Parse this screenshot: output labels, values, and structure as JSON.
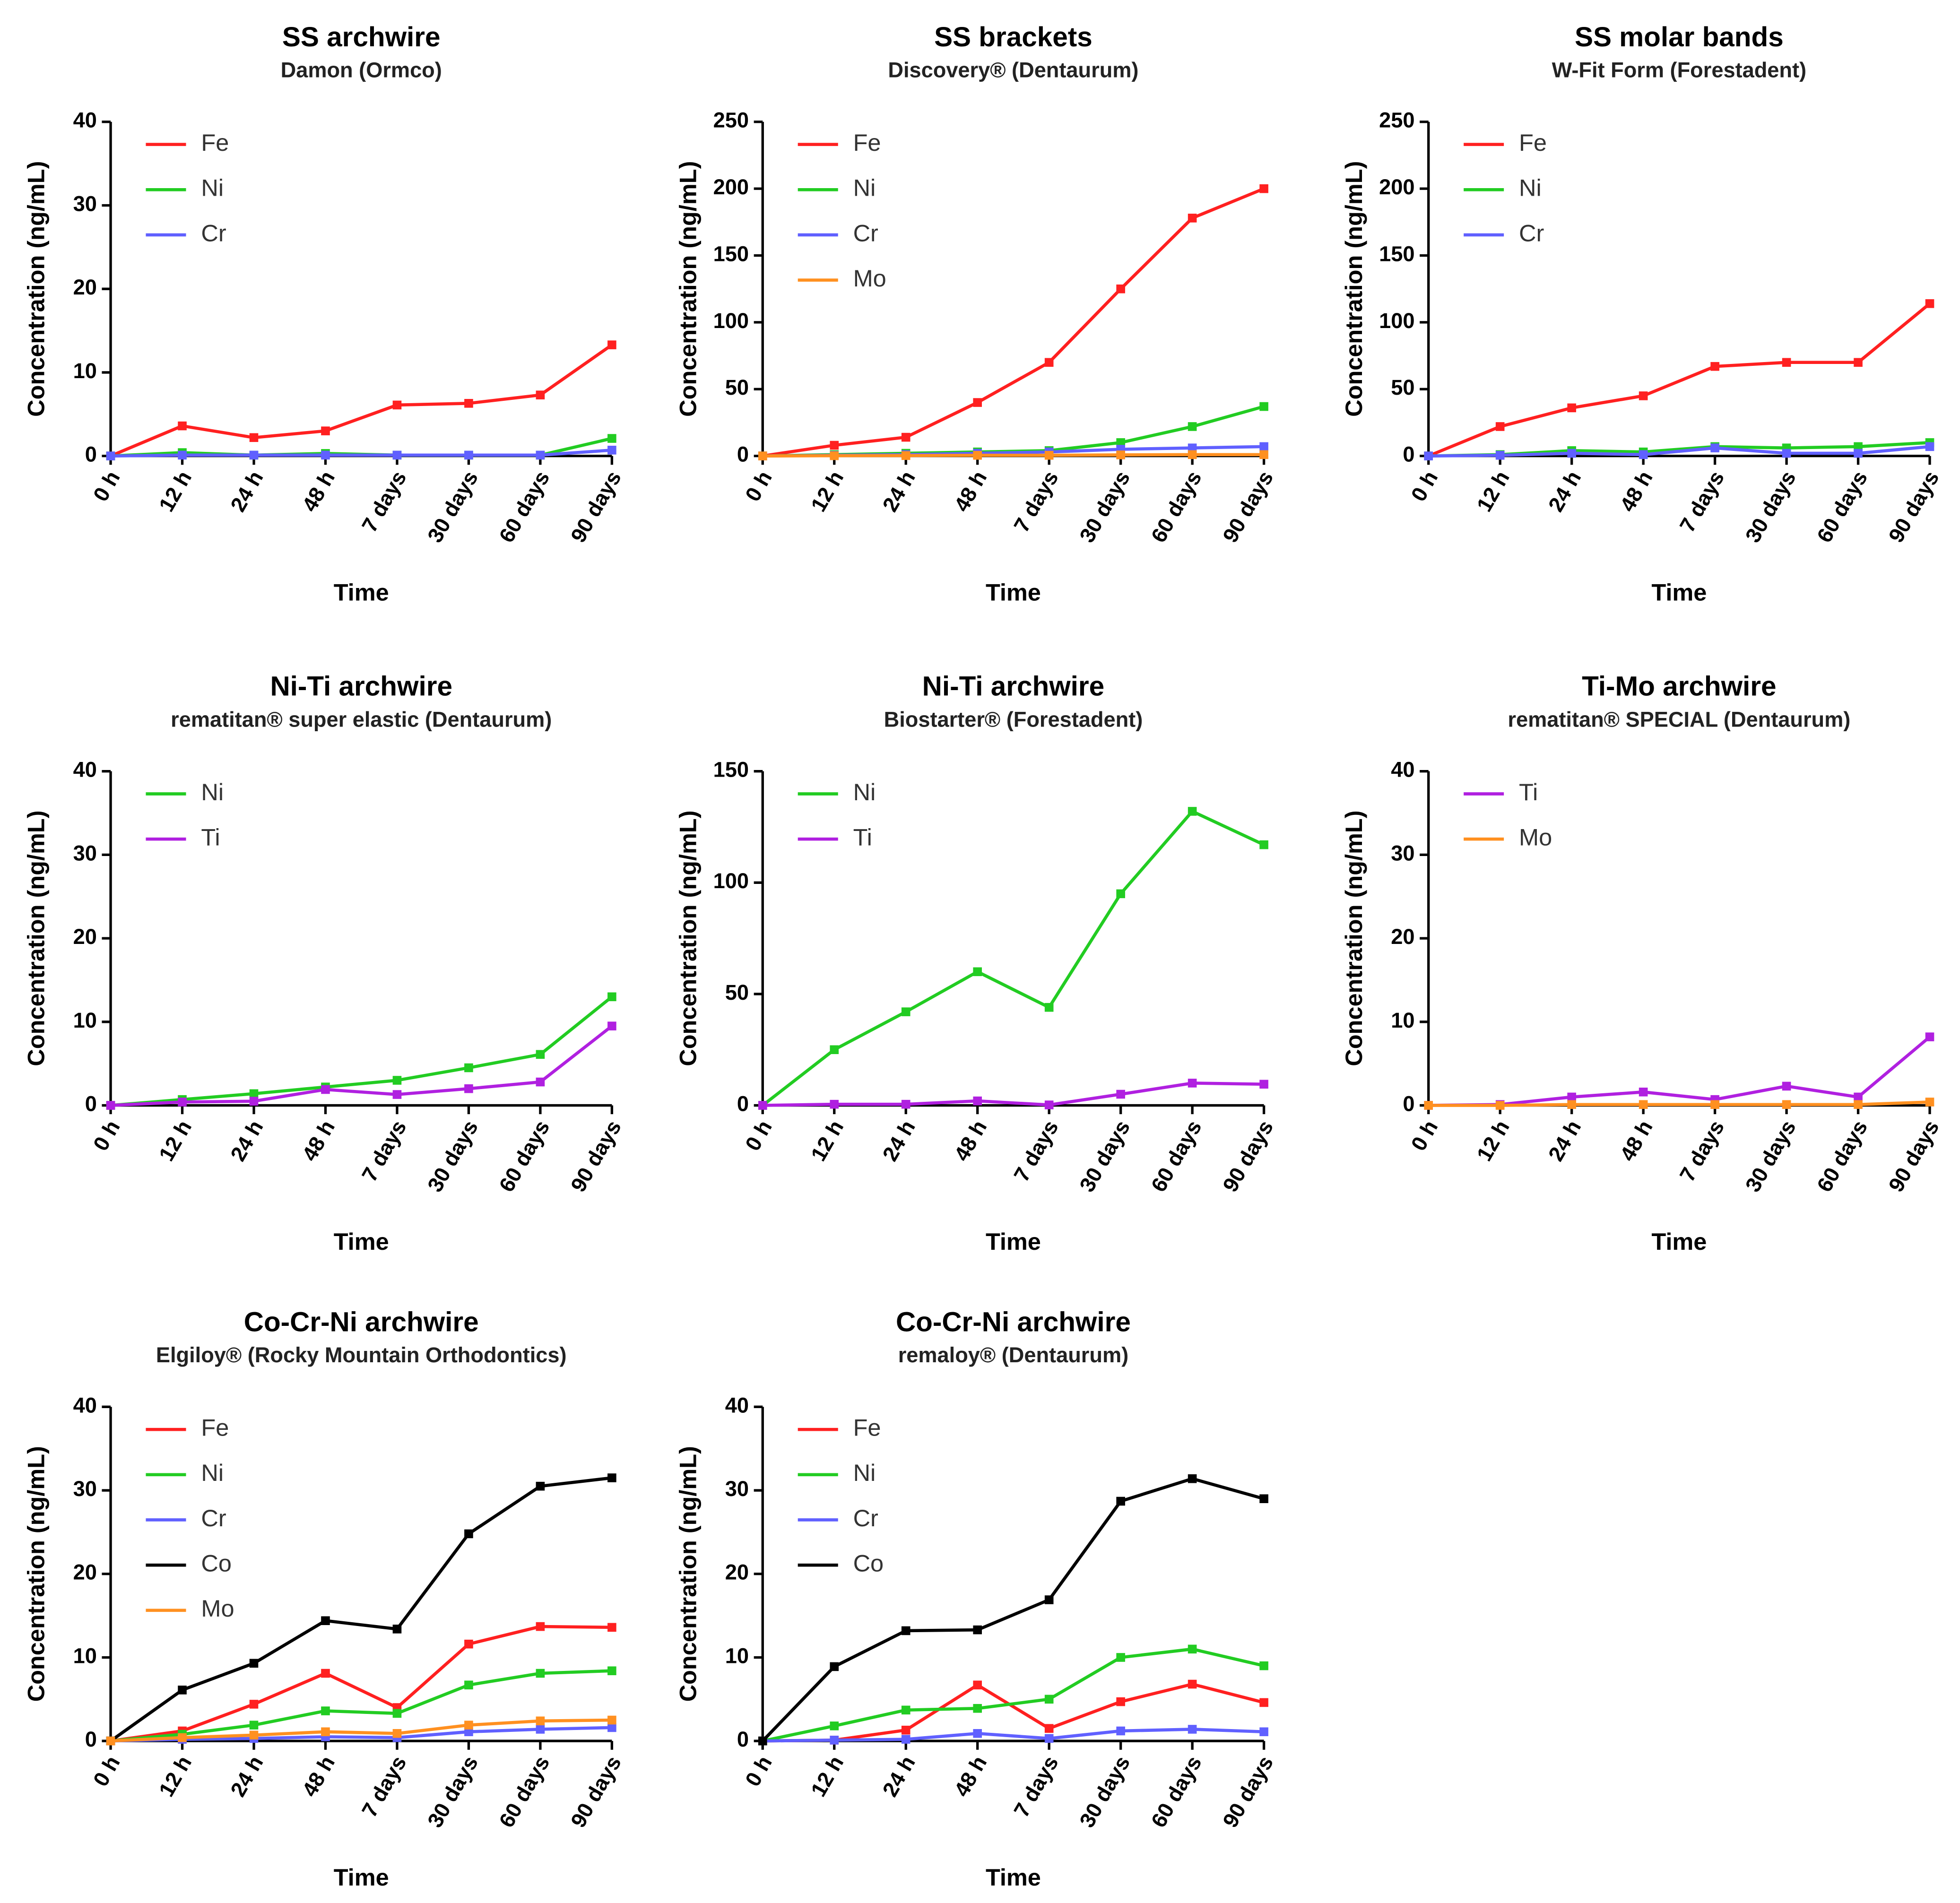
{
  "chart_data": [
    {
      "type": "line",
      "title": "SS archwire",
      "subtitle": "Damon (Ormco)",
      "x_label": "Time",
      "y_label": "Concentration (ng/mL)",
      "categories": [
        "0 h",
        "12 h",
        "24 h",
        "48 h",
        "7 days",
        "30 days",
        "60 days",
        "90 days"
      ],
      "ylim": [
        0,
        40
      ],
      "yticks": [
        0,
        10,
        20,
        30,
        40
      ],
      "legend": "top-left",
      "series": [
        {
          "name": "Fe",
          "color": "#ff2020",
          "values": [
            0,
            3.6,
            2.2,
            3,
            6.1,
            6.3,
            7.3,
            13.3
          ]
        },
        {
          "name": "Ni",
          "color": "#22cc22",
          "values": [
            0,
            0.4,
            0.1,
            0.3,
            0.1,
            0.1,
            0.1,
            2.1
          ]
        },
        {
          "name": "Cr",
          "color": "#6060ff",
          "values": [
            0,
            0.1,
            0.1,
            0.1,
            0.1,
            0.1,
            0.1,
            0.7
          ]
        }
      ]
    },
    {
      "type": "line",
      "title": "SS brackets",
      "subtitle": "Discovery® (Dentaurum)",
      "x_label": "Time",
      "y_label": "Concentration (ng/mL)",
      "categories": [
        "0 h",
        "12 h",
        "24 h",
        "48 h",
        "7 days",
        "30 days",
        "60 days",
        "90 days"
      ],
      "ylim": [
        0,
        250
      ],
      "yticks": [
        0,
        50,
        100,
        150,
        200,
        250
      ],
      "legend": "top-left",
      "series": [
        {
          "name": "Fe",
          "color": "#ff2020",
          "values": [
            0,
            8,
            14,
            40,
            70,
            125,
            178,
            200
          ]
        },
        {
          "name": "Ni",
          "color": "#22cc22",
          "values": [
            0,
            1,
            2,
            3,
            4,
            10,
            22,
            37
          ]
        },
        {
          "name": "Cr",
          "color": "#6060ff",
          "values": [
            0,
            0.5,
            1,
            2,
            3,
            5,
            6,
            7
          ]
        },
        {
          "name": "Mo",
          "color": "#ff9020",
          "values": [
            0,
            0.2,
            0.3,
            0.5,
            0.5,
            0.8,
            1,
            1
          ]
        }
      ]
    },
    {
      "type": "line",
      "title": "SS molar bands",
      "subtitle": "W-Fit Form (Forestadent)",
      "x_label": "Time",
      "y_label": "Concentration (ng/mL)",
      "categories": [
        "0 h",
        "12 h",
        "24 h",
        "48 h",
        "7 days",
        "30 days",
        "60 days",
        "90 days"
      ],
      "ylim": [
        0,
        250
      ],
      "yticks": [
        0,
        50,
        100,
        150,
        200,
        250
      ],
      "legend": "top-left",
      "series": [
        {
          "name": "Fe",
          "color": "#ff2020",
          "values": [
            0,
            22,
            36,
            45,
            67,
            70,
            70,
            114
          ]
        },
        {
          "name": "Ni",
          "color": "#22cc22",
          "values": [
            0,
            1,
            4,
            3,
            7,
            6,
            7,
            10
          ]
        },
        {
          "name": "Cr",
          "color": "#6060ff",
          "values": [
            0,
            0.5,
            2,
            1,
            6,
            2,
            2,
            7
          ]
        }
      ]
    },
    {
      "type": "line",
      "title": "Ni-Ti archwire",
      "subtitle": "rematitan® super elastic (Dentaurum)",
      "x_label": "Time",
      "y_label": "Concentration (ng/mL)",
      "categories": [
        "0 h",
        "12 h",
        "24 h",
        "48 h",
        "7 days",
        "30 days",
        "60 days",
        "90 days"
      ],
      "ylim": [
        0,
        40
      ],
      "yticks": [
        0,
        10,
        20,
        30,
        40
      ],
      "legend": "top-left",
      "series": [
        {
          "name": "Ni",
          "color": "#22cc22",
          "values": [
            0,
            0.7,
            1.4,
            2.2,
            3,
            4.5,
            6.1,
            13
          ]
        },
        {
          "name": "Ti",
          "color": "#b020e0",
          "values": [
            0,
            0.4,
            0.5,
            1.9,
            1.3,
            2,
            2.8,
            9.5
          ]
        }
      ]
    },
    {
      "type": "line",
      "title": "Ni-Ti archwire",
      "subtitle": "Biostarter® (Forestadent)",
      "x_label": "Time",
      "y_label": "Concentration (ng/mL)",
      "categories": [
        "0 h",
        "12 h",
        "24 h",
        "48 h",
        "7 days",
        "30 days",
        "60 days",
        "90 days"
      ],
      "ylim": [
        0,
        150
      ],
      "yticks": [
        0,
        50,
        100,
        150
      ],
      "legend": "top-left",
      "series": [
        {
          "name": "Ni",
          "color": "#22cc22",
          "values": [
            0,
            25,
            42,
            60,
            44,
            95,
            132,
            117
          ]
        },
        {
          "name": "Ti",
          "color": "#b020e0",
          "values": [
            0,
            0.5,
            0.5,
            2,
            0.2,
            5,
            10,
            9.5
          ]
        }
      ]
    },
    {
      "type": "line",
      "title": "Ti-Mo archwire",
      "subtitle": "rematitan® SPECIAL (Dentaurum)",
      "x_label": "Time",
      "y_label": "Concentration (ng/mL)",
      "categories": [
        "0 h",
        "12 h",
        "24 h",
        "48 h",
        "7 days",
        "30 days",
        "60 days",
        "90 days"
      ],
      "ylim": [
        0,
        40
      ],
      "yticks": [
        0,
        10,
        20,
        30,
        40
      ],
      "legend": "top-left",
      "series": [
        {
          "name": "Ti",
          "color": "#b020e0",
          "values": [
            0,
            0.1,
            1,
            1.6,
            0.7,
            2.3,
            1,
            8.2
          ]
        },
        {
          "name": "Mo",
          "color": "#ff9020",
          "values": [
            0,
            0,
            0.1,
            0.1,
            0.1,
            0.1,
            0.1,
            0.4
          ]
        }
      ]
    },
    {
      "type": "line",
      "title": "Co-Cr-Ni archwire",
      "subtitle": "Elgiloy® (Rocky Mountain Orthodontics)",
      "x_label": "Time",
      "y_label": "Concentration (ng/mL)",
      "categories": [
        "0 h",
        "12 h",
        "24 h",
        "48 h",
        "7 days",
        "30 days",
        "60 days",
        "90 days"
      ],
      "ylim": [
        0,
        40
      ],
      "yticks": [
        0,
        10,
        20,
        30,
        40
      ],
      "legend": "top-left",
      "series": [
        {
          "name": "Fe",
          "color": "#ff2020",
          "values": [
            0,
            1.2,
            4.4,
            8.1,
            4,
            11.6,
            13.7,
            13.6
          ]
        },
        {
          "name": "Ni",
          "color": "#22cc22",
          "values": [
            0,
            0.8,
            1.9,
            3.6,
            3.3,
            6.7,
            8.1,
            8.4
          ]
        },
        {
          "name": "Cr",
          "color": "#6060ff",
          "values": [
            0,
            0.2,
            0.3,
            0.5,
            0.4,
            1.1,
            1.4,
            1.6
          ]
        },
        {
          "name": "Co",
          "color": "#000000",
          "values": [
            0,
            6.1,
            9.3,
            14.4,
            13.4,
            24.8,
            30.5,
            31.5
          ]
        },
        {
          "name": "Mo",
          "color": "#ff9020",
          "values": [
            0,
            0.4,
            0.7,
            1.1,
            0.9,
            1.9,
            2.4,
            2.5
          ]
        }
      ]
    },
    {
      "type": "line",
      "title": "Co-Cr-Ni archwire",
      "subtitle": "remaloy® (Dentaurum)",
      "x_label": "Time",
      "y_label": "Concentration (ng/mL)",
      "categories": [
        "0 h",
        "12 h",
        "24 h",
        "48 h",
        "7 days",
        "30 days",
        "60 days",
        "90 days"
      ],
      "ylim": [
        0,
        40
      ],
      "yticks": [
        0,
        10,
        20,
        30,
        40
      ],
      "legend": "top-left",
      "series": [
        {
          "name": "Fe",
          "color": "#ff2020",
          "values": [
            0,
            0.1,
            1.3,
            6.7,
            1.5,
            4.7,
            6.8,
            4.6
          ]
        },
        {
          "name": "Ni",
          "color": "#22cc22",
          "values": [
            0,
            1.8,
            3.7,
            3.9,
            5,
            10,
            11,
            9
          ]
        },
        {
          "name": "Cr",
          "color": "#6060ff",
          "values": [
            0,
            0.1,
            0.2,
            0.9,
            0.3,
            1.2,
            1.4,
            1.1
          ]
        },
        {
          "name": "Co",
          "color": "#000000",
          "values": [
            0,
            8.9,
            13.2,
            13.3,
            16.9,
            28.7,
            31.4,
            29
          ]
        }
      ]
    }
  ]
}
